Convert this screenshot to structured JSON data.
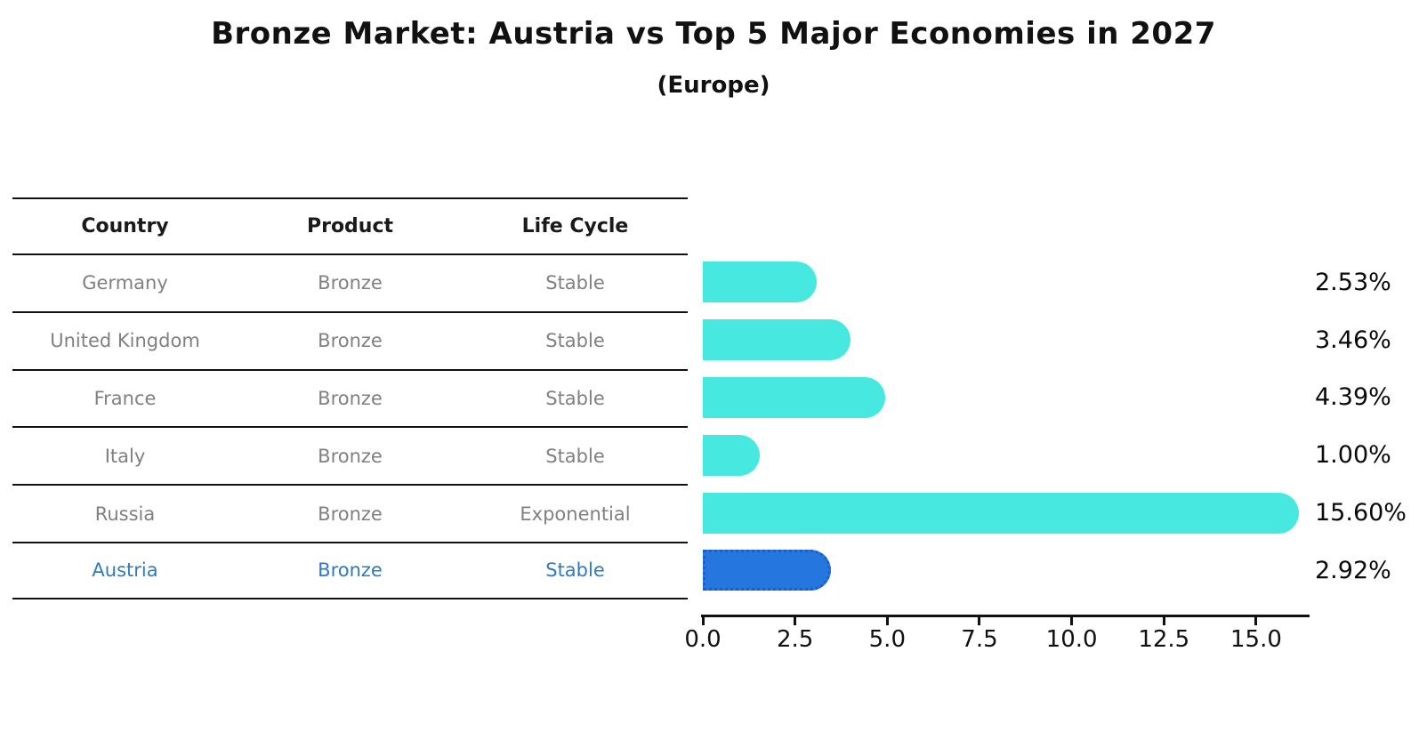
{
  "title": "Bronze Market: Austria vs Top 5 Major Economies in 2027",
  "subtitle": "(Europe)",
  "table": {
    "headers": [
      "Country",
      "Product",
      "Life Cycle"
    ],
    "rows": [
      {
        "country": "Germany",
        "product": "Bronze",
        "life_cycle": "Stable",
        "highlight": false
      },
      {
        "country": "United Kingdom",
        "product": "Bronze",
        "life_cycle": "Stable",
        "highlight": false
      },
      {
        "country": "France",
        "product": "Bronze",
        "life_cycle": "Stable",
        "highlight": false
      },
      {
        "country": "Italy",
        "product": "Bronze",
        "life_cycle": "Stable",
        "highlight": false
      },
      {
        "country": "Russia",
        "product": "Bronze",
        "life_cycle": "Exponential",
        "highlight": false
      },
      {
        "country": "Austria",
        "product": "Bronze",
        "life_cycle": "Stable",
        "highlight": true
      }
    ]
  },
  "chart_data": {
    "type": "bar",
    "orientation": "horizontal",
    "title": "Bronze Market: Austria vs Top 5 Major Economies in 2027",
    "subtitle": "(Europe)",
    "categories": [
      "Germany",
      "United Kingdom",
      "France",
      "Italy",
      "Russia",
      "Austria"
    ],
    "values": [
      2.53,
      3.46,
      4.39,
      1.0,
      15.6,
      2.92
    ],
    "value_labels": [
      "2.53%",
      "3.46%",
      "4.39%",
      "1.00%",
      "15.60%",
      "2.92%"
    ],
    "highlight_category": "Austria",
    "highlight_index": 5,
    "x_tick_labels": [
      "0.0",
      "2.5",
      "5.0",
      "7.5",
      "10.0",
      "12.5",
      "15.0"
    ],
    "x_tick_values": [
      0,
      2.5,
      5,
      7.5,
      10,
      12.5,
      15
    ],
    "xlim": [
      0,
      16.4
    ],
    "grid": false,
    "legend": false
  },
  "colors": {
    "bar": "#46E8E0",
    "highlight_bar": "#2577DF",
    "highlight_bar_border": "#1b5fc6",
    "highlight_text": "#2e7bc4",
    "table_text": "#808080",
    "header_text": "#1a1a1a",
    "axis": "#111111"
  }
}
